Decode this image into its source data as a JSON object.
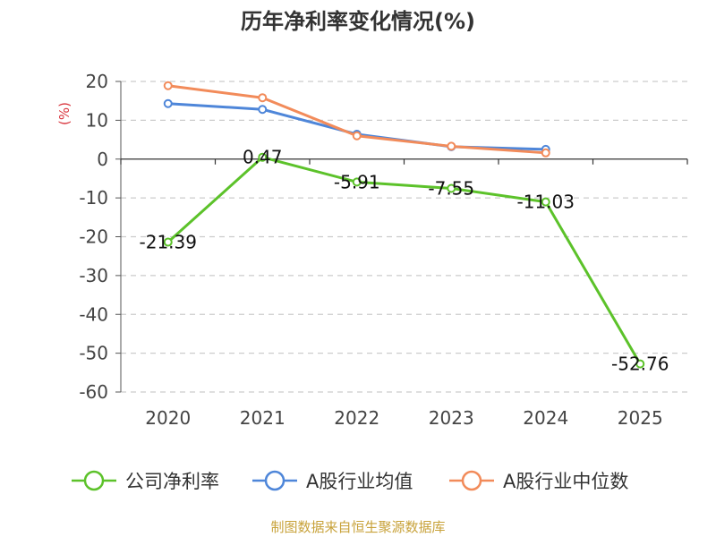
{
  "chart_data": {
    "type": "line",
    "title": "历年净利率变化情况(%)",
    "ylabel": "(%)",
    "categories": [
      "2020",
      "2021",
      "2022",
      "2023",
      "2024",
      "2025"
    ],
    "ylim": [
      -60,
      20
    ],
    "yticks": [
      20,
      10,
      0,
      -10,
      -20,
      -30,
      -40,
      -50,
      -60
    ],
    "grid": true,
    "legend_position": "bottom",
    "series": [
      {
        "name": "公司净利率",
        "color": "#5cc22a",
        "values": [
          -21.39,
          0.47,
          -5.91,
          -7.55,
          -11.03,
          -52.76
        ],
        "labels": [
          "-21.39",
          "0.47",
          "-5.91",
          "-7.55",
          "-11.03",
          "-52.76"
        ]
      },
      {
        "name": "A股行业均值",
        "color": "#4e86d9",
        "values": [
          14.3,
          12.8,
          6.4,
          3.2,
          2.5,
          null
        ]
      },
      {
        "name": "A股行业中位数",
        "color": "#f28b5a",
        "values": [
          18.9,
          15.8,
          6.0,
          3.3,
          1.6,
          null
        ]
      }
    ]
  },
  "source": "制图数据来自恒生聚源数据库"
}
